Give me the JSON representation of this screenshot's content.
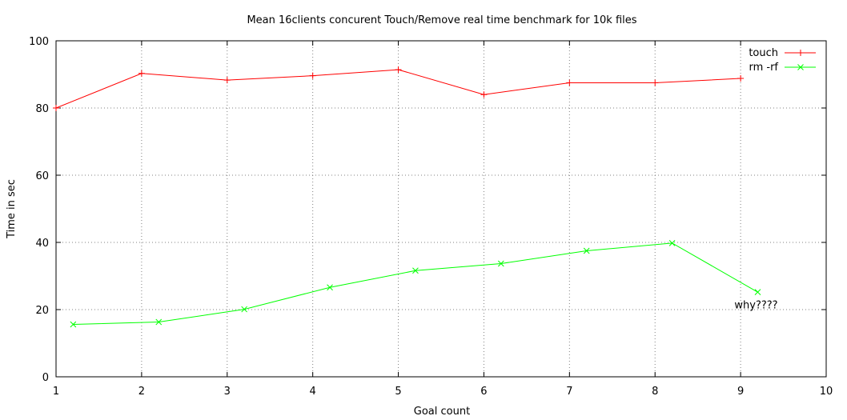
{
  "chart_data": {
    "type": "line",
    "title": "Mean 16clients concurent Touch/Remove real time benchmark for 10k files",
    "xlabel": "Goal count",
    "ylabel": "Time in sec",
    "xlim": [
      1,
      10
    ],
    "ylim": [
      0,
      100
    ],
    "xticks": [
      1,
      2,
      3,
      4,
      5,
      6,
      7,
      8,
      9,
      10
    ],
    "yticks": [
      0,
      20,
      40,
      60,
      80,
      100
    ],
    "grid": true,
    "legend_position": "top-right",
    "annotation": {
      "text": "why????",
      "x": 9.2,
      "y": 21.5
    },
    "series": [
      {
        "name": "touch",
        "color": "#ff0000",
        "marker": "plus",
        "x": [
          1,
          2,
          3,
          4,
          5,
          6,
          7,
          8,
          9
        ],
        "y": [
          80.0,
          90.3,
          88.3,
          89.6,
          91.4,
          84.0,
          87.5,
          87.5,
          88.8
        ]
      },
      {
        "name": "rm -rf",
        "color": "#00ff00",
        "marker": "cross",
        "x": [
          1.2,
          2.2,
          3.2,
          4.2,
          5.2,
          6.2,
          7.2,
          8.2,
          9.2
        ],
        "y": [
          15.6,
          16.3,
          20.1,
          26.6,
          31.6,
          33.7,
          37.5,
          39.8,
          25.2
        ]
      }
    ]
  }
}
